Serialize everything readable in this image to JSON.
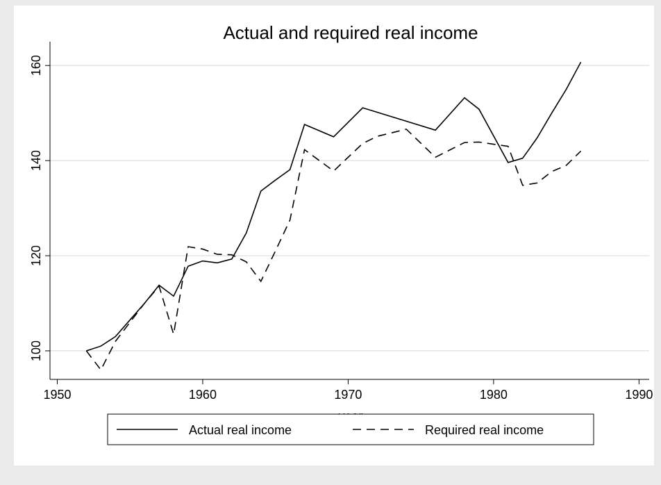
{
  "chart_data": {
    "type": "line",
    "title": "Actual and required real income",
    "x_label": "year",
    "series": [
      {
        "name": "Actual real income",
        "color": "#000000",
        "dash": "solid",
        "x": [
          1952,
          1953,
          1954,
          1955,
          1956,
          1957,
          1958,
          1959,
          1960,
          1961,
          1962,
          1963,
          1964,
          1965,
          1966,
          1967,
          1969,
          1971,
          1976,
          1978,
          1979,
          1981,
          1982,
          1983,
          1984,
          1985,
          1986
        ],
        "values": [
          100,
          101,
          103,
          106.5,
          110,
          113.8,
          111.5,
          117.8,
          118.9,
          118.5,
          119.3,
          124.8,
          133.6,
          135.9,
          138.1,
          147.6,
          145,
          151.1,
          146.4,
          153.2,
          150.8,
          139.6,
          140.5,
          144.8,
          150,
          155,
          160.7
        ]
      },
      {
        "name": "Required real income",
        "color": "#000000",
        "dash": "dashed",
        "x": [
          1952,
          1953,
          1954,
          1955,
          1956,
          1957,
          1958,
          1959,
          1960,
          1961,
          1962,
          1963,
          1964,
          1965,
          1966,
          1967,
          1969,
          1971,
          1972,
          1974,
          1976,
          1978,
          1979,
          1981,
          1982,
          1983,
          1984,
          1985,
          1986
        ],
        "values": [
          100,
          96,
          102,
          106,
          110,
          113.6,
          103.5,
          121.9,
          121.4,
          120.3,
          120.2,
          118.7,
          114.6,
          121,
          127.5,
          142.3,
          137.8,
          143.6,
          145.1,
          146.6,
          140.7,
          143.8,
          143.9,
          143,
          134.8,
          135.3,
          137.7,
          139,
          142
        ]
      }
    ],
    "xlim": [
      1949.5,
      1990.7
    ],
    "xticks": [
      1950,
      1960,
      1970,
      1980,
      1990
    ],
    "ylim": [
      94,
      165
    ],
    "yticks": [
      100,
      120,
      140,
      160
    ],
    "grid": true,
    "legend": "bottom"
  }
}
